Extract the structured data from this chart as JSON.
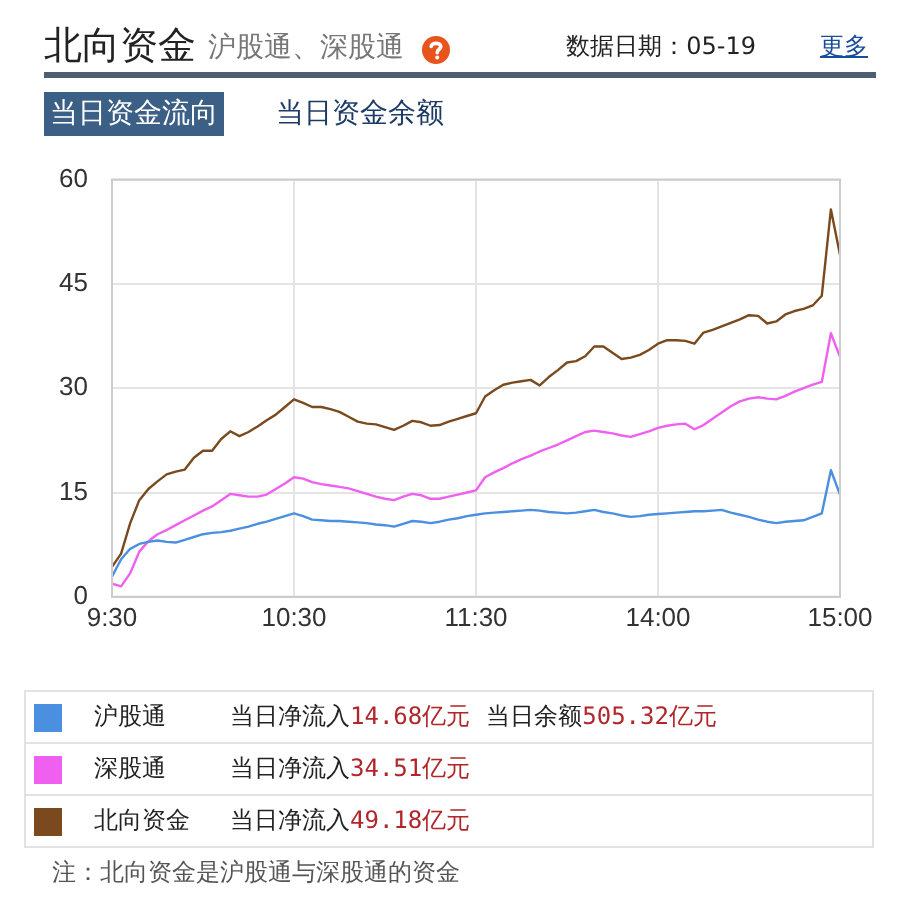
{
  "chart_data": {
    "type": "line",
    "title": "北向资金",
    "subtitle": "沪股通、深股通",
    "categories": [
      "9:30",
      null,
      null,
      null,
      null,
      null,
      null,
      null,
      null,
      null,
      null,
      null,
      null,
      null,
      null,
      null,
      null,
      null,
      null,
      null,
      "10:30",
      null,
      null,
      null,
      null,
      null,
      null,
      null,
      null,
      null,
      null,
      null,
      null,
      null,
      null,
      null,
      null,
      null,
      null,
      null,
      "11:30",
      null,
      null,
      null,
      null,
      null,
      null,
      null,
      null,
      null,
      null,
      null,
      null,
      null,
      null,
      null,
      null,
      null,
      null,
      null,
      "14:00",
      null,
      null,
      null,
      null,
      null,
      null,
      null,
      null,
      null,
      null,
      null,
      null,
      null,
      null,
      null,
      null,
      null,
      null,
      null,
      "15:00"
    ],
    "ylim": [
      0,
      60
    ],
    "yticks": [
      0,
      15,
      30,
      45,
      60
    ],
    "grid": true,
    "legend": "bottom",
    "marker": "none",
    "line_style": "solid",
    "series": [
      {
        "name": "沪股通",
        "color": "#4a8fe0",
        "values": [
          2.9,
          5.4,
          6.9,
          7.6,
          7.9,
          8.1,
          7.9,
          7.8,
          8.2,
          8.6,
          9.0,
          9.2,
          9.3,
          9.5,
          9.8,
          10.1,
          10.5,
          10.8,
          11.2,
          11.6,
          12.0,
          11.6,
          11.1,
          11.0,
          10.9,
          10.9,
          10.8,
          10.7,
          10.6,
          10.4,
          10.3,
          10.1,
          10.5,
          10.9,
          10.8,
          10.6,
          10.8,
          11.1,
          11.3,
          11.6,
          11.8,
          12.0,
          12.1,
          12.2,
          12.3,
          12.4,
          12.5,
          12.4,
          12.2,
          12.1,
          12.0,
          12.1,
          12.3,
          12.5,
          12.2,
          12.0,
          11.7,
          11.5,
          11.6,
          11.8,
          11.9,
          12.0,
          12.1,
          12.2,
          12.3,
          12.3,
          12.4,
          12.5,
          12.1,
          11.8,
          11.5,
          11.1,
          10.8,
          10.6,
          10.8,
          10.9,
          11.0,
          11.5,
          12.0,
          18.2,
          14.7
        ]
      },
      {
        "name": "深股通",
        "color": "#f060f0",
        "values": [
          1.9,
          1.5,
          3.4,
          6.5,
          8.0,
          9.0,
          9.6,
          10.3,
          11.0,
          11.7,
          12.4,
          13.0,
          13.9,
          14.8,
          14.6,
          14.4,
          14.4,
          14.7,
          15.5,
          16.3,
          17.2,
          17.0,
          16.5,
          16.2,
          16.0,
          15.8,
          15.6,
          15.2,
          14.8,
          14.4,
          14.1,
          13.9,
          14.4,
          14.8,
          14.6,
          14.1,
          14.1,
          14.4,
          14.7,
          15.0,
          15.3,
          17.2,
          17.9,
          18.5,
          19.2,
          19.8,
          20.3,
          20.9,
          21.4,
          21.9,
          22.5,
          23.1,
          23.7,
          23.9,
          23.7,
          23.5,
          23.2,
          23.0,
          23.4,
          23.8,
          24.3,
          24.6,
          24.8,
          24.9,
          24.1,
          24.7,
          25.6,
          26.5,
          27.4,
          28.1,
          28.5,
          28.7,
          28.5,
          28.4,
          28.9,
          29.5,
          30.0,
          30.5,
          30.9,
          37.9,
          34.5
        ]
      },
      {
        "name": "北向资金",
        "color": "#7a4a1e",
        "values": [
          4.3,
          6.2,
          10.6,
          13.9,
          15.5,
          16.6,
          17.6,
          18.0,
          18.3,
          20.0,
          21,
          21,
          22.7,
          23.8,
          23.1,
          23.7,
          24.5,
          25.4,
          26.2,
          27.3,
          28.4,
          27.9,
          27.3,
          27.3,
          27.0,
          26.6,
          25.9,
          25.2,
          24.9,
          24.8,
          24.4,
          24.0,
          24.6,
          25.3,
          25.1,
          24.6,
          24.7,
          25.2,
          25.6,
          26.0,
          26.4,
          28.8,
          29.7,
          30.5,
          30.8,
          31.0,
          31.2,
          30.4,
          31.6,
          32.6,
          33.7,
          33.9,
          34.6,
          36.0,
          36.0,
          35.1,
          34.2,
          34.4,
          34.8,
          35.5,
          36.4,
          36.9,
          36.9,
          36.8,
          36.4,
          38.0,
          38.4,
          38.9,
          39.4,
          39.9,
          40.5,
          40.4,
          39.3,
          39.6,
          40.6,
          41.1,
          41.4,
          41.9,
          43.3,
          55.7,
          49.2
        ]
      }
    ],
    "annotations": [
      "数据日期：05-19",
      "更多",
      "当日资金流向",
      "当日资金余额",
      "当日净流入14.68亿元",
      "当日净流入34.51亿元",
      "当日净流入49.18亿元",
      "当日余额505.32亿元",
      "注：北向资金是沪股通与深股通的资金"
    ]
  }
}
